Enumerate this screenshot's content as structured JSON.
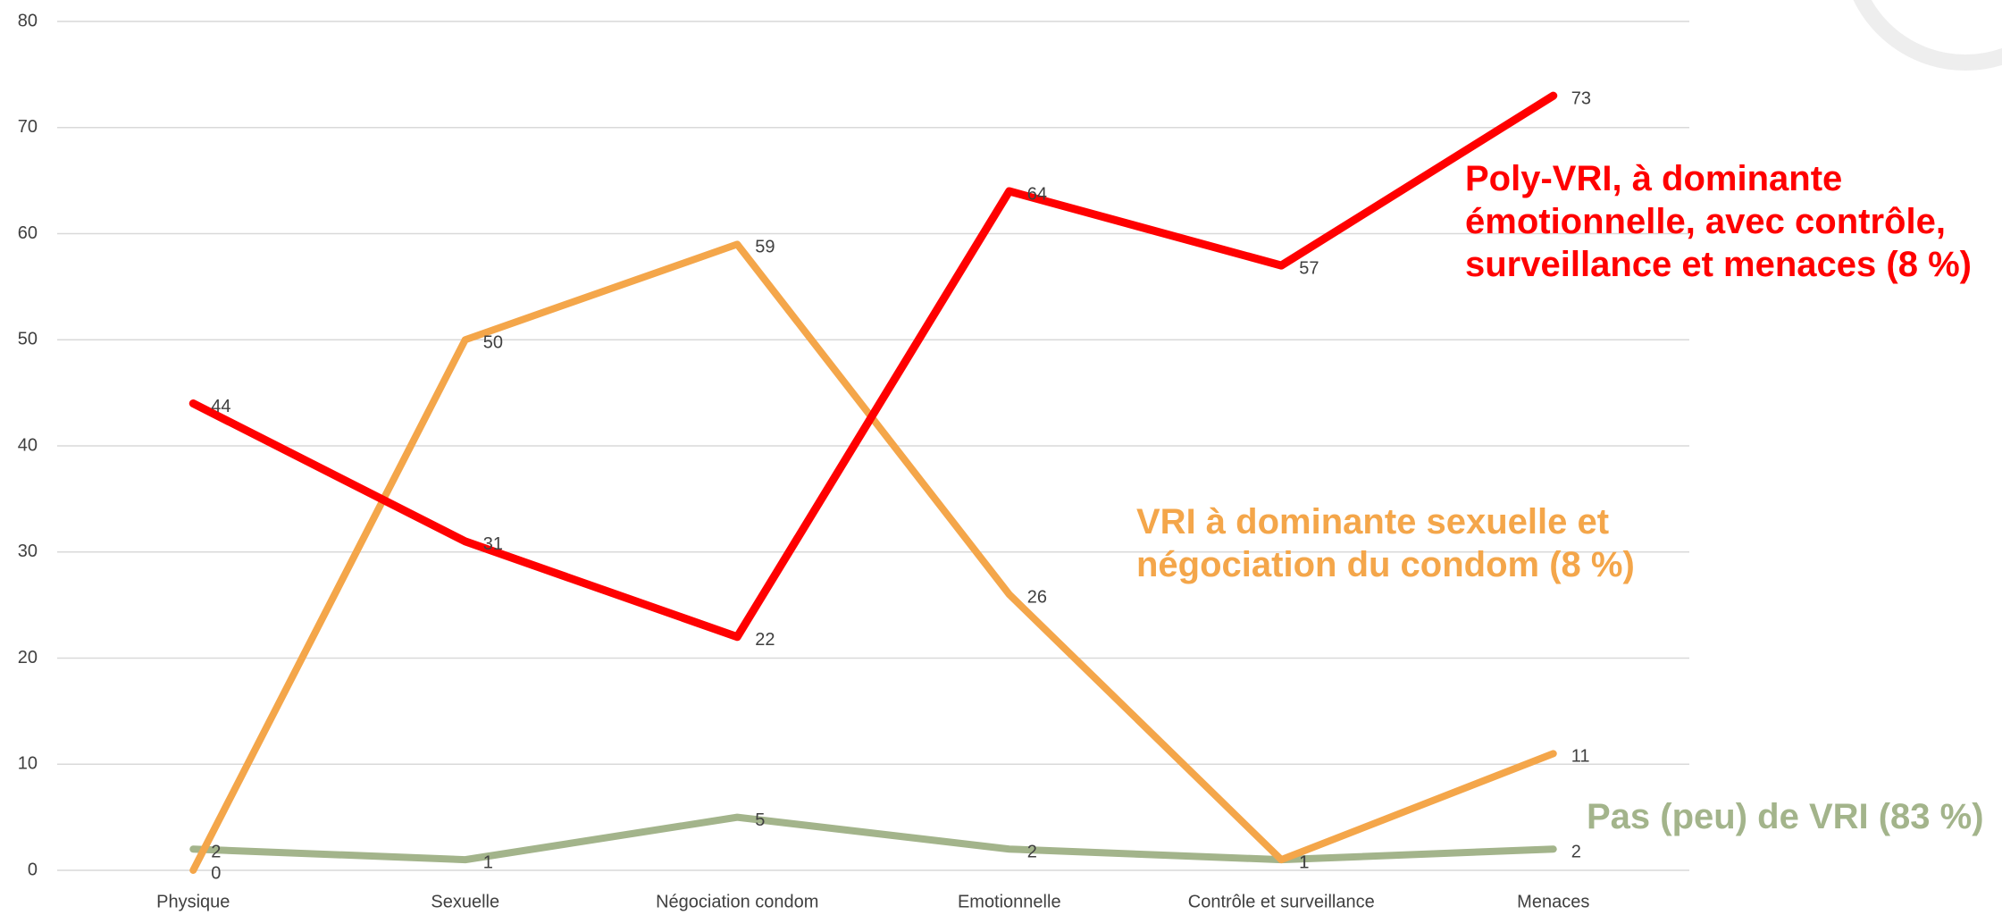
{
  "chart_data": {
    "type": "line",
    "categories": [
      "Physique",
      "Sexuelle",
      "Négociation condom",
      "Emotionnelle",
      "Contrôle et surveillance",
      "Menaces"
    ],
    "series": [
      {
        "name": "Poly-VRI, à dominante émotionnelle, avec contrôle, surveillance et menaces (8 %)",
        "color": "#ff0000",
        "values": [
          44,
          31,
          22,
          64,
          57,
          73
        ]
      },
      {
        "name": "VRI à dominante sexuelle et négociation du condom (8 %)",
        "color": "#f4a64a",
        "values": [
          0,
          50,
          59,
          26,
          1,
          11
        ]
      },
      {
        "name": "Pas (peu) de VRI (83 %)",
        "color": "#a3b48b",
        "values": [
          2,
          1,
          5,
          2,
          1,
          2
        ]
      }
    ],
    "ylim": [
      0,
      80
    ],
    "yticks": [
      0,
      10,
      20,
      30,
      40,
      50,
      60,
      70,
      80
    ],
    "grid": true
  }
}
